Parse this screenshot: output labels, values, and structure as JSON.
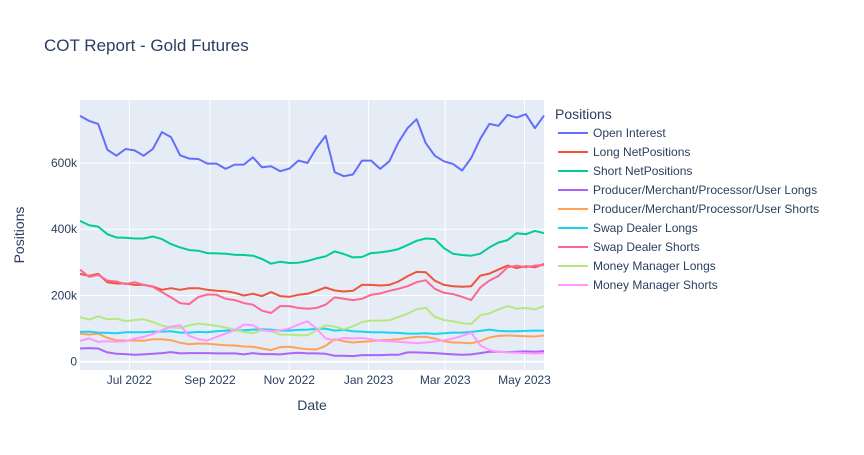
{
  "chart_data": {
    "type": "line",
    "title": "COT Report - Gold Futures",
    "xlabel": "Date",
    "ylabel": "Positions",
    "legend_title": "Positions",
    "legend_position": "right",
    "grid": true,
    "x_range": [
      "2022-05-24",
      "2023-05-16"
    ],
    "ylim": [
      -25000,
      790000
    ],
    "y_ticks": [
      {
        "value": 0,
        "label": "0"
      },
      {
        "value": 200000,
        "label": "200k"
      },
      {
        "value": 400000,
        "label": "400k"
      },
      {
        "value": 600000,
        "label": "600k"
      }
    ],
    "x_ticks": [
      {
        "value": "2022-07-01",
        "label": "Jul 2022"
      },
      {
        "value": "2022-09-01",
        "label": "Sep 2022"
      },
      {
        "value": "2022-11-01",
        "label": "Nov 2022"
      },
      {
        "value": "2023-01-01",
        "label": "Jan 2023"
      },
      {
        "value": "2023-03-01",
        "label": "Mar 2023"
      },
      {
        "value": "2023-05-01",
        "label": "May 2023"
      }
    ],
    "x": [
      "2022-05-24",
      "2022-05-31",
      "2022-06-07",
      "2022-06-14",
      "2022-06-21",
      "2022-06-28",
      "2022-07-05",
      "2022-07-12",
      "2022-07-19",
      "2022-07-26",
      "2022-08-02",
      "2022-08-09",
      "2022-08-16",
      "2022-08-23",
      "2022-08-30",
      "2022-09-06",
      "2022-09-13",
      "2022-09-20",
      "2022-09-27",
      "2022-10-04",
      "2022-10-11",
      "2022-10-18",
      "2022-10-25",
      "2022-11-01",
      "2022-11-08",
      "2022-11-15",
      "2022-11-22",
      "2022-11-29",
      "2022-12-06",
      "2022-12-13",
      "2022-12-20",
      "2022-12-27",
      "2023-01-03",
      "2023-01-10",
      "2023-01-17",
      "2023-01-24",
      "2023-01-31",
      "2023-02-07",
      "2023-02-14",
      "2023-02-21",
      "2023-02-28",
      "2023-03-07",
      "2023-03-14",
      "2023-03-21",
      "2023-03-28",
      "2023-04-04",
      "2023-04-11",
      "2023-04-18",
      "2023-04-25",
      "2023-05-02",
      "2023-05-09",
      "2023-05-16"
    ],
    "series": [
      {
        "name": "Open Interest",
        "color": "#636efa",
        "values": [
          742000,
          727000,
          718000,
          640000,
          622000,
          642000,
          638000,
          622000,
          642000,
          693000,
          678000,
          623000,
          613000,
          612000,
          598000,
          598000,
          582000,
          595000,
          595000,
          617000,
          587000,
          590000,
          575000,
          583000,
          607000,
          600000,
          645000,
          682000,
          572000,
          560000,
          565000,
          607000,
          607000,
          582000,
          605000,
          662000,
          705000,
          732000,
          660000,
          622000,
          605000,
          597000,
          577000,
          615000,
          673000,
          718000,
          712000,
          745000,
          737000,
          747000,
          705000,
          743000
        ]
      },
      {
        "name": "Long NetPositions",
        "color": "#EF553B",
        "values": [
          265000,
          259000,
          265000,
          240000,
          236000,
          236000,
          232000,
          232000,
          227000,
          217000,
          222000,
          217000,
          222000,
          222000,
          217000,
          214000,
          213000,
          208000,
          200000,
          205000,
          198000,
          210000,
          198000,
          196000,
          202000,
          205000,
          214000,
          224000,
          215000,
          212000,
          214000,
          232000,
          232000,
          230000,
          232000,
          242000,
          258000,
          271000,
          270000,
          245000,
          232000,
          228000,
          226000,
          228000,
          260000,
          266000,
          278000,
          290000,
          283000,
          288000,
          285000,
          295000
        ]
      },
      {
        "name": "Short NetPositions",
        "color": "#00cc96",
        "values": [
          425000,
          412000,
          408000,
          385000,
          375000,
          374000,
          372000,
          372000,
          378000,
          370000,
          355000,
          345000,
          337000,
          335000,
          328000,
          327000,
          326000,
          323000,
          322000,
          320000,
          310000,
          296000,
          302000,
          298000,
          299000,
          304000,
          312000,
          318000,
          333000,
          325000,
          315000,
          316000,
          328000,
          330000,
          334000,
          340000,
          352000,
          365000,
          372000,
          370000,
          343000,
          326000,
          322000,
          320000,
          326000,
          345000,
          360000,
          367000,
          388000,
          385000,
          395000,
          388000
        ]
      },
      {
        "name": "Producer/Merchant/Processor/User Longs",
        "color": "#ab63fa",
        "values": [
          40000,
          41000,
          40000,
          28000,
          24000,
          23000,
          21000,
          22000,
          24000,
          26000,
          29000,
          25000,
          26000,
          26000,
          26000,
          25000,
          25000,
          25000,
          22000,
          26000,
          23000,
          23000,
          22000,
          25000,
          27000,
          25000,
          25000,
          24000,
          18000,
          18000,
          17000,
          20000,
          20000,
          20000,
          21000,
          21000,
          28000,
          28000,
          27000,
          26000,
          24000,
          22000,
          21000,
          22000,
          26000,
          30000,
          30000,
          29000,
          30000,
          31000,
          30000,
          32000
        ]
      },
      {
        "name": "Producer/Merchant/Processor/User Shorts",
        "color": "#FFA15A",
        "values": [
          85000,
          82000,
          85000,
          72000,
          65000,
          64000,
          64000,
          63000,
          68000,
          68000,
          65000,
          57000,
          53000,
          55000,
          54000,
          52000,
          50000,
          49000,
          46000,
          45000,
          40000,
          35000,
          44000,
          45000,
          41000,
          38000,
          37000,
          48000,
          68000,
          62000,
          58000,
          60000,
          62000,
          65000,
          66000,
          68000,
          72000,
          75000,
          75000,
          70000,
          62000,
          58000,
          57000,
          56000,
          62000,
          73000,
          78000,
          79000,
          78000,
          77000,
          76000,
          79000
        ]
      },
      {
        "name": "Swap Dealer Longs",
        "color": "#19d3f3",
        "values": [
          90000,
          91000,
          88000,
          87000,
          86000,
          89000,
          89000,
          89000,
          91000,
          91000,
          92000,
          88000,
          88000,
          90000,
          89000,
          92000,
          94000,
          95000,
          95000,
          97000,
          98000,
          97000,
          94000,
          94000,
          96000,
          97000,
          99000,
          100000,
          94000,
          96000,
          92000,
          91000,
          89000,
          89000,
          88000,
          87000,
          85000,
          85000,
          86000,
          84000,
          86000,
          88000,
          88000,
          90000,
          93000,
          97000,
          93000,
          92000,
          92000,
          93000,
          94000,
          94000
        ]
      },
      {
        "name": "Swap Dealer Shorts",
        "color": "#FF6692",
        "values": [
          278000,
          256000,
          262000,
          245000,
          242000,
          234000,
          240000,
          232000,
          226000,
          210000,
          194000,
          177000,
          174000,
          195000,
          203000,
          202000,
          190000,
          186000,
          177000,
          172000,
          154000,
          147000,
          168000,
          168000,
          162000,
          160000,
          162000,
          172000,
          194000,
          190000,
          186000,
          190000,
          202000,
          206000,
          214000,
          220000,
          228000,
          240000,
          246000,
          220000,
          208000,
          204000,
          196000,
          186000,
          224000,
          245000,
          259000,
          285000,
          290000,
          285000,
          290000,
          292000
        ]
      },
      {
        "name": "Money Manager Longs",
        "color": "#B6E880",
        "values": [
          135000,
          127000,
          137000,
          128000,
          130000,
          123000,
          126000,
          128000,
          120000,
          109000,
          103000,
          102000,
          110000,
          115000,
          112000,
          108000,
          103000,
          97000,
          90000,
          86000,
          95000,
          92000,
          82000,
          82000,
          80000,
          80000,
          95000,
          110000,
          106000,
          98000,
          107000,
          120000,
          124000,
          124000,
          125000,
          135000,
          145000,
          158000,
          163000,
          135000,
          126000,
          122000,
          116000,
          114000,
          140000,
          146000,
          158000,
          168000,
          160000,
          162000,
          158000,
          168000
        ]
      },
      {
        "name": "Money Manager Shorts",
        "color": "#FF97FF",
        "values": [
          63000,
          70000,
          60000,
          62000,
          60000,
          62000,
          70000,
          75000,
          84000,
          95000,
          106000,
          110000,
          78000,
          68000,
          64000,
          75000,
          85000,
          95000,
          112000,
          110000,
          95000,
          93000,
          95000,
          100000,
          112000,
          122000,
          100000,
          70000,
          65000,
          72000,
          70000,
          72000,
          68000,
          63000,
          62000,
          60000,
          58000,
          56000,
          58000,
          61000,
          65000,
          70000,
          78000,
          88000,
          50000,
          35000,
          30000,
          28000,
          27000,
          26000,
          25000,
          26000
        ]
      }
    ]
  }
}
